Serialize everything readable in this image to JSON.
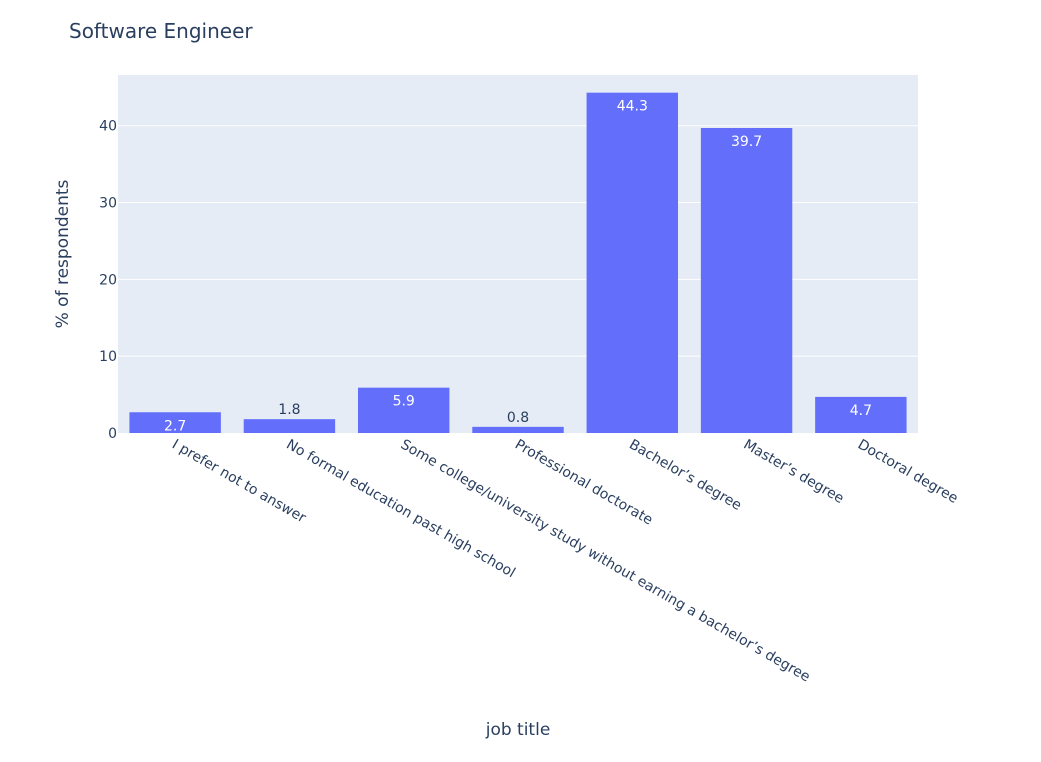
{
  "chart_data": {
    "type": "bar",
    "title": "Software Engineer",
    "xlabel": "job title",
    "ylabel": "% of respondents",
    "categories": [
      "I prefer not to answer",
      "No formal education past high school",
      "Some college/university study without earning a bachelor’s degree",
      "Professional doctorate",
      "Bachelor’s degree",
      "Master’s degree",
      "Doctoral degree"
    ],
    "values": [
      2.7,
      1.8,
      5.9,
      0.8,
      44.3,
      39.7,
      4.7
    ],
    "labels": [
      "2.7",
      "1.8",
      "5.9",
      "0.8",
      "44.3",
      "39.7",
      "4.7"
    ],
    "ylim": [
      0,
      46.6
    ],
    "yticks": [
      0,
      10,
      20,
      30,
      40
    ],
    "grid": true,
    "legend": "none",
    "tick_label_rotation": 30
  },
  "colors": {
    "bar": "#636efa",
    "plot_background": "#e5ecf6",
    "gridline": "#ffffff",
    "text": "#2a3f5f",
    "label_inside": "#ffffff"
  }
}
